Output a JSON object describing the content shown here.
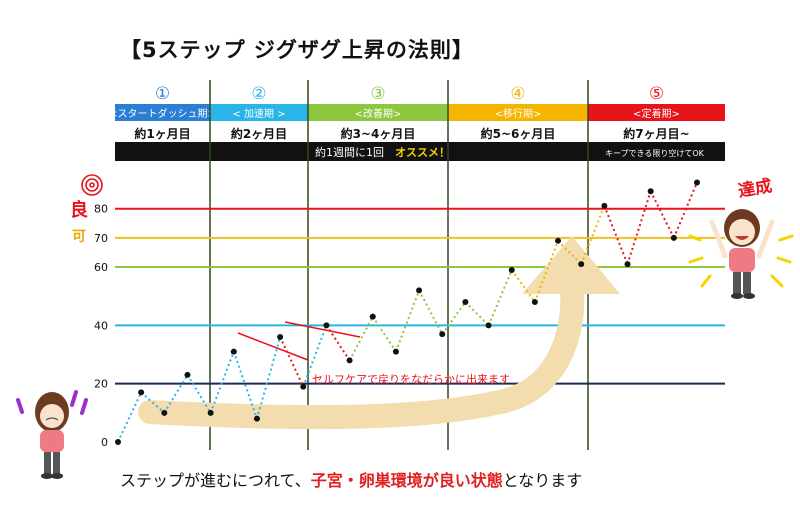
{
  "title": "【5ステップ ジグザグ上昇の法則】",
  "caption": {
    "before": "ステップが進むにつれて、",
    "highlight": "子宮・卵巣環境が良い状態",
    "after": "となります"
  },
  "phases": [
    {
      "num": "①",
      "name": "<スタートダッシュ期>",
      "duration": "約1ヶ月目",
      "color": "#2a7fd4"
    },
    {
      "num": "②",
      "name": "< 加速期 >",
      "duration": "約2ヶ月目",
      "color": "#2ab5e8"
    },
    {
      "num": "③",
      "name": "<改善期>",
      "duration": "約3~4ヶ月目",
      "color": "#8dc63f"
    },
    {
      "num": "④",
      "name": "<移行期>",
      "duration": "約5~6ヶ月目",
      "color": "#f5b400"
    },
    {
      "num": "⑤",
      "name": "<定着期>",
      "duration": "約7ヶ月目~",
      "color": "#e8141b"
    }
  ],
  "banner": {
    "main": "約1週間に1回",
    "accent": "オススメ！",
    "right": "キープできる限り空けてOK"
  },
  "side_labels": {
    "good": "良",
    "ok": "可"
  },
  "annotation": "セルフケアで戻りをなだらかに出来ます",
  "achieved": "達成",
  "colors": {
    "line80": "#e8141b",
    "line70": "#f0c020",
    "line60": "#8dc63f",
    "line40": "#2ab5e8",
    "line20": "#1a2a5a",
    "divider": "#2e4a1e",
    "arrow": "#f3dcae",
    "annotation": "#e8141b"
  },
  "chart_data": {
    "type": "line",
    "yticks": [
      0,
      20,
      40,
      60,
      70,
      80
    ],
    "ylim": [
      0,
      95
    ],
    "reference_lines": [
      20,
      40,
      60,
      70,
      80
    ],
    "series": [
      {
        "values": [
          0,
          17,
          10,
          23,
          10,
          31,
          8,
          36,
          19,
          40,
          28,
          43,
          31,
          52,
          37,
          48,
          40,
          59,
          48,
          69,
          61,
          81,
          61,
          86,
          70,
          89
        ]
      }
    ],
    "segment_colors": [
      "#2ab5e8",
      "#2ab5e8",
      "#2ab5e8",
      "#2ab5e8",
      "#2ab5e8",
      "#2ab5e8",
      "#2ab5e8",
      "#e8141b",
      "#2ab5e8",
      "#e8141b",
      "#8dc63f",
      "#8dc63f",
      "#8dc63f",
      "#8dc63f",
      "#8dc63f",
      "#8dc63f",
      "#8dc63f",
      "#f5b400",
      "#f5b400",
      "#f5b400",
      "#f5b400",
      "#e8141b",
      "#e8141b",
      "#e8141b",
      "#e8141b"
    ]
  }
}
